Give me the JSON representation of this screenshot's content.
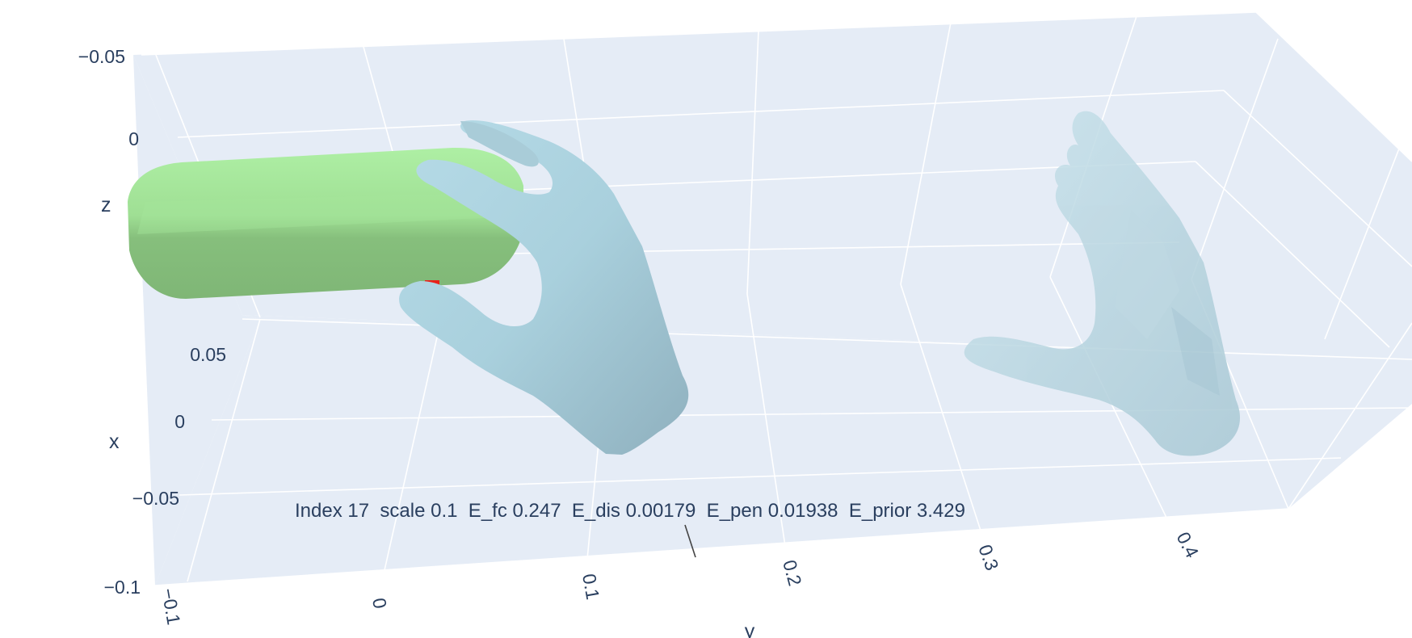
{
  "chart_data": {
    "type": "mesh3d",
    "annotation": "Index 17  scale 0.1  E_fc 0.247  E_dis 0.00179  E_pen 0.01938  E_prior 3.429",
    "axes": {
      "x": {
        "title": "x",
        "ticks": [
          "0.05",
          "0",
          "−0.05",
          "−0.1"
        ]
      },
      "y": {
        "title": "y",
        "ticks": [
          "−0.1",
          "0",
          "0.1",
          "0.2",
          "0.3",
          "0.4"
        ]
      },
      "z": {
        "title": "z",
        "ticks": [
          "−0.05",
          "0"
        ]
      }
    },
    "meshes": [
      {
        "name": "object",
        "shape": "capsule",
        "color": "#a5e99a"
      },
      {
        "name": "hand-grasp",
        "color": "#add8e6",
        "opacity": 1.0
      },
      {
        "name": "hand-initial",
        "color": "#add8e6",
        "opacity": 0.5
      }
    ],
    "contact_point_color": "#e8221b",
    "background_color": "#e5ecf6",
    "grid_color": "#ffffff"
  }
}
